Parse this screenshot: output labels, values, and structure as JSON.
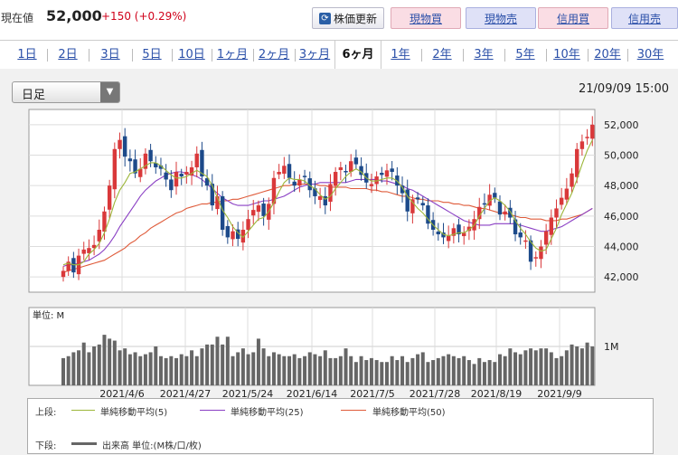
{
  "header": {
    "price_label": "現在値",
    "price_value": "52,000",
    "price_change": "+150 (+0.29%)",
    "refresh_label": "株価更新",
    "buttons": [
      "現物買",
      "現物売",
      "信用買",
      "信用売"
    ]
  },
  "tabs": [
    "1日",
    "2日",
    "3日",
    "5日",
    "10日",
    "1ヶ月",
    "2ヶ月",
    "3ヶ月",
    "6ヶ月",
    "1年",
    "2年",
    "3年",
    "5年",
    "10年",
    "20年",
    "30年"
  ],
  "active_tab": "6ヶ月",
  "chart_controls": {
    "interval_select": "日足",
    "timestamp": "21/09/09 15:00"
  },
  "volume_unit_label": "単位: M",
  "legend": {
    "upper_label": "上段:",
    "lower_label": "下段:",
    "ma5": "単純移動平均(5)",
    "ma25": "単純移動平均(25)",
    "ma50": "単純移動平均(50)",
    "volume": "出来高 単位:(M株/口/枚)"
  },
  "colors": {
    "up": "#d9383a",
    "down": "#1d4a8a",
    "ma5": "#9cb63a",
    "ma25": "#8a3fc4",
    "ma50": "#df5b3a",
    "volume": "#666666",
    "buy_bg": "#fadde4",
    "sell_bg": "#dfe1f7"
  },
  "chart_data": [
    {
      "type": "candlestick",
      "title": "",
      "ylim": [
        41000,
        53000
      ],
      "y_ticks": [
        "42,000",
        "44,000",
        "46,000",
        "48,000",
        "50,000",
        "52,000"
      ],
      "x_tick_labels": [
        "2021/4/6",
        "2021/4/27",
        "2021/5/24",
        "2021/6/14",
        "2021/7/5",
        "2021/7/28",
        "2021/8/19",
        "2021/9/9"
      ],
      "closes": [
        42400,
        43000,
        42300,
        43400,
        43800,
        43900,
        44100,
        45100,
        46300,
        48000,
        50400,
        51000,
        49900,
        49600,
        48800,
        49100,
        50100,
        49600,
        49200,
        49100,
        48400,
        47700,
        48900,
        48600,
        48900,
        49200,
        50100,
        48600,
        48000,
        46700,
        47300,
        45100,
        44600,
        45000,
        44500,
        45100,
        45800,
        46400,
        46700,
        46000,
        46800,
        48500,
        48900,
        49300,
        48500,
        48000,
        48400,
        48600,
        47700,
        47300,
        47300,
        46700,
        48100,
        48900,
        49200,
        48900,
        49600,
        49400,
        48700,
        48200,
        48100,
        48600,
        48700,
        49000,
        48900,
        48000,
        47500,
        46300,
        47100,
        47100,
        46700,
        45500,
        45100,
        44800,
        44600,
        44700,
        45200,
        44800,
        44900,
        45300,
        45800,
        46600,
        46800,
        47400,
        47200,
        46100,
        46300,
        45900,
        44800,
        44600,
        44400,
        43000,
        43300,
        44000,
        45000,
        45900,
        46500,
        47200,
        47800,
        48800,
        50400,
        50900,
        51200,
        52000
      ],
      "ma5": [
        42800,
        42900,
        42800,
        42800,
        43000,
        43500,
        43800,
        44200,
        44900,
        45800,
        46900,
        47700,
        48200,
        48800,
        48900,
        49100,
        49300,
        49500,
        49500,
        49300,
        49000,
        48700,
        48500,
        48500,
        48600,
        48800,
        49000,
        48800,
        48600,
        48000,
        47200,
        46400,
        45900,
        45300,
        44900,
        44600,
        45000,
        45400,
        45800,
        45900,
        46300,
        46900,
        47600,
        48200,
        48500,
        48400,
        48400,
        48300,
        48000,
        47800,
        47400,
        47100,
        47300,
        47800,
        48200,
        48600,
        48900,
        49100,
        48900,
        48500,
        48300,
        48300,
        48400,
        48500,
        48500,
        48300,
        47900,
        47300,
        46900,
        46500,
        46200,
        45800,
        45400,
        45100,
        44800,
        44700,
        44800,
        44900,
        44900,
        45100,
        45400,
        46000,
        46500,
        47000,
        47200,
        47000,
        46700,
        46300,
        45700,
        45200,
        44800,
        44300,
        43900,
        43700,
        43800,
        44500,
        45200,
        46100,
        46800,
        47500,
        48400,
        49400,
        50300,
        51000
      ],
      "ma25": [
        42700,
        42800,
        42800,
        42900,
        43000,
        43100,
        43300,
        43500,
        43800,
        44200,
        44700,
        45300,
        45800,
        46300,
        46800,
        47300,
        47700,
        48000,
        48300,
        48500,
        48700,
        48800,
        48900,
        48900,
        48800,
        48700,
        48600,
        48400,
        48100,
        47800,
        47500,
        47200,
        47000,
        46800,
        46700,
        46700,
        46700,
        46800,
        46900,
        47000,
        47000,
        47100,
        47200,
        47300,
        47500,
        47700,
        47900,
        48000,
        48100,
        48100,
        48200,
        48200,
        48200,
        48200,
        48200,
        48200,
        48300,
        48400,
        48400,
        48400,
        48400,
        48400,
        48300,
        48300,
        48200,
        48100,
        48000,
        47800,
        47700,
        47500,
        47300,
        47100,
        46900,
        46700,
        46500,
        46300,
        46100,
        45900,
        45700,
        45600,
        45500,
        45400,
        45400,
        45400,
        45500,
        45500,
        45500,
        45500,
        45500,
        45400,
        45300,
        45200,
        45100,
        45000,
        45000,
        45100,
        45200,
        45300,
        45500,
        45700,
        45900,
        46100,
        46300,
        46500
      ],
      "ma50": [
        42300,
        42400,
        42500,
        42600,
        42700,
        42800,
        42900,
        43000,
        43100,
        43300,
        43500,
        43700,
        43900,
        44200,
        44400,
        44700,
        44900,
        45200,
        45400,
        45600,
        45800,
        46000,
        46200,
        46300,
        46500,
        46600,
        46700,
        46800,
        46800,
        46900,
        46900,
        47000,
        47000,
        47100,
        47100,
        47200,
        47300,
        47400,
        47500,
        47600,
        47700,
        47800,
        47900,
        48000,
        48000,
        48100,
        48100,
        48100,
        48100,
        48100,
        48000,
        48000,
        47900,
        47900,
        47900,
        47900,
        47800,
        47800,
        47800,
        47800,
        47700,
        47700,
        47600,
        47600,
        47500,
        47400,
        47300,
        47300,
        47200,
        47100,
        47100,
        47000,
        47000,
        47000,
        46900,
        46900,
        46800,
        46800,
        46700,
        46700,
        46600,
        46500,
        46500,
        46400,
        46300,
        46200,
        46200,
        46100,
        46000,
        45900,
        45900,
        45800,
        45800,
        45800,
        45700,
        45700,
        45700,
        45800,
        45800,
        45900,
        46000,
        46100,
        46300,
        46500
      ]
    },
    {
      "type": "bar",
      "title": "",
      "ylabel": "単位: M",
      "y_ticks": [
        "1M"
      ],
      "ylim": [
        0,
        2.0
      ],
      "values": [
        0.7,
        0.75,
        0.85,
        0.9,
        1.1,
        0.85,
        1.0,
        1.05,
        1.3,
        1.2,
        1.15,
        0.9,
        0.95,
        0.8,
        0.85,
        0.75,
        0.8,
        0.85,
        1.0,
        0.75,
        0.7,
        0.75,
        0.7,
        0.8,
        0.75,
        0.9,
        0.75,
        0.95,
        1.05,
        1.05,
        1.25,
        1.05,
        1.25,
        0.75,
        0.85,
        0.95,
        0.8,
        0.85,
        1.2,
        0.95,
        0.75,
        0.85,
        0.8,
        0.75,
        0.75,
        0.8,
        0.7,
        0.75,
        0.85,
        0.8,
        0.75,
        0.9,
        0.7,
        0.7,
        0.75,
        0.95,
        0.75,
        0.6,
        0.75,
        0.65,
        0.7,
        0.65,
        0.6,
        0.6,
        0.75,
        0.65,
        0.75,
        0.6,
        0.7,
        0.8,
        0.85,
        0.6,
        0.65,
        0.7,
        0.75,
        0.8,
        0.75,
        0.7,
        0.75,
        0.65,
        0.55,
        0.7,
        0.6,
        0.65,
        0.6,
        0.8,
        0.75,
        0.95,
        0.85,
        0.8,
        0.9,
        0.95,
        0.9,
        0.95,
        0.95,
        0.85,
        0.7,
        0.75,
        0.9,
        1.05,
        1.0,
        0.95,
        1.1,
        1.0
      ]
    }
  ]
}
